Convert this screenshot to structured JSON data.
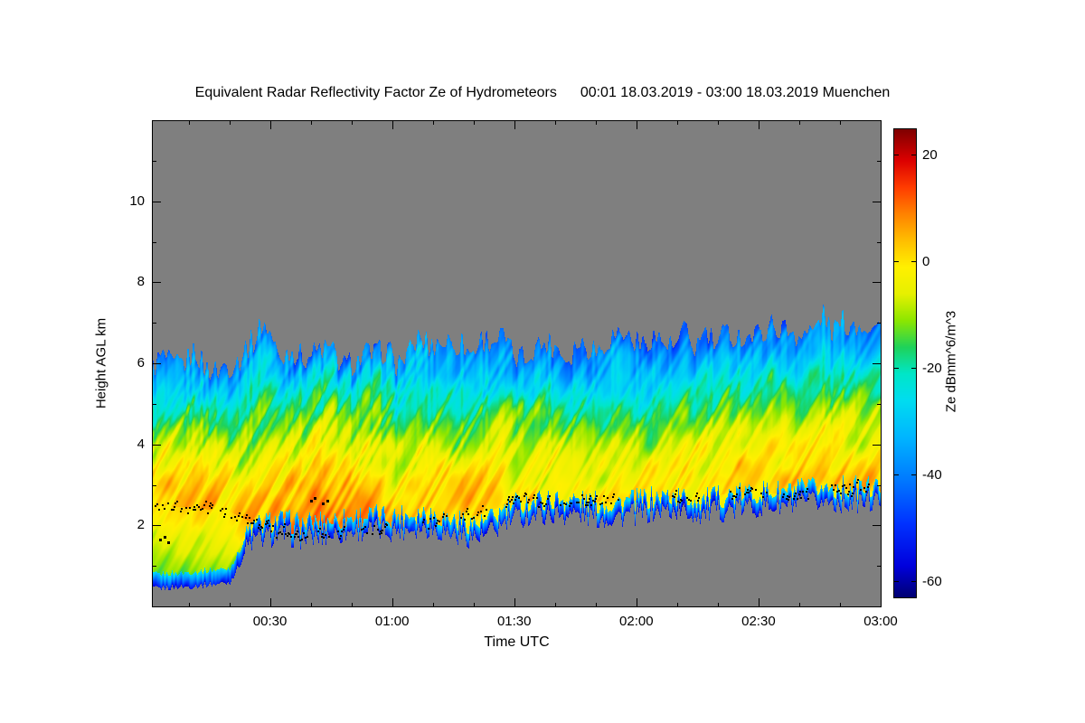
{
  "title": {
    "main": "Equivalent Radar Reflectivity Factor Ze of Hydrometeors",
    "period": "00:01 18.03.2019 - 03:00 18.03.2019 Muenchen"
  },
  "x_axis": {
    "label": "Time UTC",
    "tick_labels": [
      "00:30",
      "01:00",
      "01:30",
      "02:00",
      "02:30",
      "03:00"
    ],
    "tick_minutes": [
      30,
      60,
      90,
      120,
      150,
      180
    ],
    "minor_step_minutes": 10,
    "range_minutes": [
      1,
      180
    ]
  },
  "y_axis": {
    "label": "Height AGL km",
    "tick_labels": [
      "2",
      "4",
      "6",
      "8",
      "10"
    ],
    "tick_km": [
      2,
      4,
      6,
      8,
      10
    ],
    "minor_step_km": 1,
    "range_km": [
      0,
      12
    ]
  },
  "colorbar": {
    "label": "Ze dBmm^6/m^3",
    "tick_labels": [
      "20",
      "0",
      "-20",
      "-40",
      "-60"
    ],
    "tick_values": [
      20,
      0,
      -20,
      -40,
      -60
    ],
    "range": [
      -63,
      25
    ],
    "colormap_stops": [
      [
        -63,
        "#000070"
      ],
      [
        -57,
        "#0000dc"
      ],
      [
        -49,
        "#0032ff"
      ],
      [
        -41,
        "#0078ff"
      ],
      [
        -33,
        "#00b4ff"
      ],
      [
        -26,
        "#00dcf0"
      ],
      [
        -21,
        "#00e6c8"
      ],
      [
        -16,
        "#1ed25a"
      ],
      [
        -11,
        "#8ce600"
      ],
      [
        -6,
        "#e6f000"
      ],
      [
        -1,
        "#fff000"
      ],
      [
        4,
        "#ffbe00"
      ],
      [
        9,
        "#ff8200"
      ],
      [
        14,
        "#ff3c00"
      ],
      [
        19,
        "#dc0000"
      ],
      [
        25,
        "#7d0000"
      ]
    ]
  },
  "chart_data": {
    "type": "heatmap",
    "title": "Equivalent Radar Reflectivity Factor Ze of Hydrometeors",
    "xlabel": "Time UTC",
    "ylabel": "Height AGL km",
    "zlabel": "Ze dBmm^6/m^3",
    "x_range_minutes": [
      1,
      180
    ],
    "y_range_km": [
      0,
      12
    ],
    "z_range_dbz": [
      -63,
      25
    ],
    "no_echo_color": "#7f7f7f",
    "description": "Cloud radar time-height section over Muenchen. Gray = no echo. Rainbow colors = Ze in dBmm^6/m^3. Black dots mark the melting layer / liquid layer detection around 1.7-2.9 km. Echo reaches the ground before 00:20, then echo base lifts; strongest (orange) reflectivity fall streaks 00:35-01:00 at 2.5-3.5 km; cloud top rises from about 6.2 km to 7.0 km by 03:00.",
    "time_minutes": [
      1,
      10,
      20,
      25,
      28,
      32,
      38,
      45,
      52,
      60,
      68,
      75,
      82,
      90,
      97,
      105,
      112,
      120,
      128,
      135,
      142,
      150,
      158,
      165,
      172,
      180
    ],
    "cloud_top_km": [
      6.2,
      6.1,
      6.0,
      6.3,
      7.0,
      6.3,
      6.1,
      6.2,
      6.0,
      6.2,
      6.6,
      6.3,
      6.4,
      6.4,
      6.3,
      6.4,
      6.5,
      6.6,
      6.5,
      6.6,
      6.7,
      6.8,
      6.9,
      7.0,
      7.0,
      7.0
    ],
    "echo_base_km": [
      0.45,
      0.5,
      0.6,
      1.5,
      1.6,
      1.7,
      1.6,
      1.7,
      1.8,
      1.8,
      1.9,
      1.7,
      1.6,
      2.1,
      2.2,
      2.2,
      2.1,
      2.2,
      2.3,
      2.2,
      2.3,
      2.4,
      2.4,
      2.5,
      2.5,
      2.5
    ],
    "melting_layer_dots_km": [
      2.5,
      2.45,
      2.35,
      2.1,
      2.0,
      1.85,
      1.75,
      1.8,
      1.85,
      1.95,
      2.05,
      2.15,
      2.3,
      2.6,
      2.6,
      2.55,
      2.6,
      2.6,
      2.65,
      2.6,
      2.8,
      2.85,
      2.75,
      2.9,
      2.9,
      2.85
    ],
    "peak_dbz": [
      0,
      1,
      1,
      2,
      2,
      4,
      6,
      6,
      5,
      4,
      2,
      1,
      0,
      -1,
      0,
      -1,
      0,
      -1,
      0,
      -1,
      0,
      0,
      -1,
      0,
      0,
      0
    ],
    "stray_dots": [
      [
        3,
        1.65
      ],
      [
        4,
        1.72
      ],
      [
        5,
        1.58
      ],
      [
        40,
        2.6
      ],
      [
        41,
        2.68
      ],
      [
        43,
        2.55
      ],
      [
        44,
        2.62
      ]
    ]
  }
}
